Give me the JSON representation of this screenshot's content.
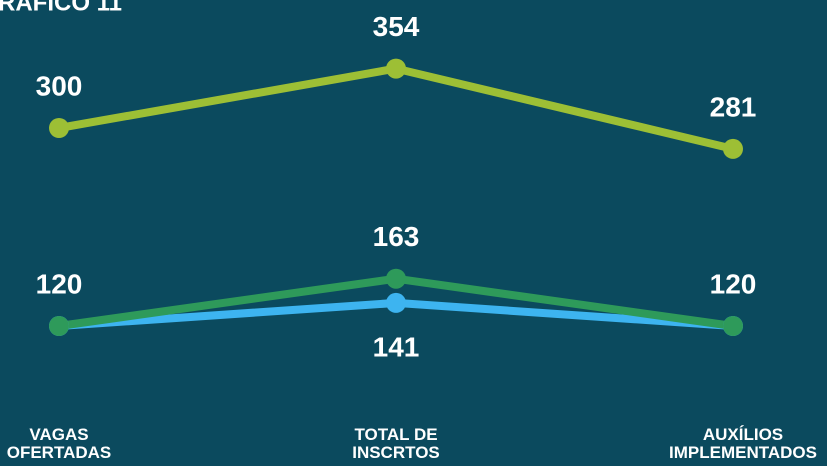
{
  "chart_data": {
    "type": "line",
    "title": "RÁFICO 11",
    "categories": [
      "VAGAS\nOFERTADAS",
      "TOTAL DE\nINSCRTOS",
      "AUXÍLIOS\nIMPLEMENTADOS"
    ],
    "ylim": [
      0,
      400
    ],
    "series": [
      {
        "color": "#9dbf35",
        "values": [
          300,
          354,
          281
        ],
        "label_position": "above"
      },
      {
        "color": "#3db4f0",
        "values": [
          120,
          141,
          120
        ],
        "label_position": "below",
        "labeled": [
          false,
          true,
          false
        ]
      },
      {
        "color": "#2e9a5a",
        "values": [
          120,
          163,
          120
        ],
        "label_position": "above"
      }
    ]
  }
}
